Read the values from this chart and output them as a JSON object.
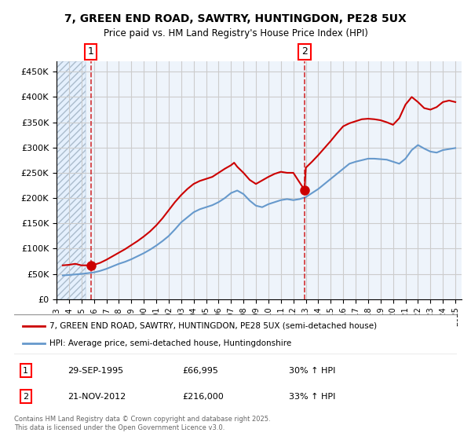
{
  "title_line1": "7, GREEN END ROAD, SAWTRY, HUNTINGDON, PE28 5UX",
  "title_line2": "Price paid vs. HM Land Registry's House Price Index (HPI)",
  "legend_line1": "7, GREEN END ROAD, SAWTRY, HUNTINGDON, PE28 5UX (semi-detached house)",
  "legend_line2": "HPI: Average price, semi-detached house, Huntingdonshire",
  "footer": "Contains HM Land Registry data © Crown copyright and database right 2025.\nThis data is licensed under the Open Government Licence v3.0.",
  "purchase1_date": "29-SEP-1995",
  "purchase1_price": 66995,
  "purchase1_hpi": "30% ↑ HPI",
  "purchase2_date": "21-NOV-2012",
  "purchase2_price": 216000,
  "purchase2_hpi": "33% ↑ HPI",
  "purchase1_x": 1995.75,
  "purchase2_x": 2012.9,
  "red_line_color": "#cc0000",
  "blue_line_color": "#6699cc",
  "hpi_dot_color": "#cc0000",
  "bg_hatched_color": "#ddeeff",
  "grid_color": "#cccccc",
  "ylim_min": 0,
  "ylim_max": 470000,
  "xlim_min": 1993,
  "xlim_max": 2025.5,
  "ytick_values": [
    0,
    50000,
    100000,
    150000,
    200000,
    250000,
    300000,
    350000,
    400000,
    450000
  ],
  "ytick_labels": [
    "£0",
    "£50K",
    "£100K",
    "£150K",
    "£200K",
    "£250K",
    "£300K",
    "£350K",
    "£400K",
    "£450K"
  ],
  "xtick_years": [
    1993,
    1994,
    1995,
    1996,
    1997,
    1998,
    1999,
    2000,
    2001,
    2002,
    2003,
    2004,
    2005,
    2006,
    2007,
    2008,
    2009,
    2010,
    2011,
    2012,
    2013,
    2014,
    2015,
    2016,
    2017,
    2018,
    2019,
    2020,
    2021,
    2022,
    2023,
    2024,
    2025
  ],
  "hpi_data_x": [
    1993.5,
    1994.0,
    1994.5,
    1995.0,
    1995.5,
    1996.0,
    1996.5,
    1997.0,
    1997.5,
    1998.0,
    1998.5,
    1999.0,
    1999.5,
    2000.0,
    2000.5,
    2001.0,
    2001.5,
    2002.0,
    2002.5,
    2003.0,
    2003.5,
    2004.0,
    2004.5,
    2005.0,
    2005.5,
    2006.0,
    2006.5,
    2007.0,
    2007.5,
    2008.0,
    2008.5,
    2009.0,
    2009.5,
    2010.0,
    2010.5,
    2011.0,
    2011.5,
    2012.0,
    2012.5,
    2013.0,
    2013.5,
    2014.0,
    2014.5,
    2015.0,
    2015.5,
    2016.0,
    2016.5,
    2017.0,
    2017.5,
    2018.0,
    2018.5,
    2019.0,
    2019.5,
    2020.0,
    2020.5,
    2021.0,
    2021.5,
    2022.0,
    2022.5,
    2023.0,
    2023.5,
    2024.0,
    2024.5,
    2025.0
  ],
  "hpi_data_y": [
    47000,
    48000,
    49000,
    50000,
    51500,
    53000,
    56000,
    60000,
    65000,
    70000,
    74000,
    79000,
    85000,
    91000,
    98000,
    106000,
    115000,
    125000,
    138000,
    152000,
    162000,
    172000,
    178000,
    182000,
    186000,
    192000,
    200000,
    210000,
    215000,
    208000,
    195000,
    185000,
    182000,
    188000,
    192000,
    196000,
    198000,
    196000,
    198000,
    202000,
    210000,
    218000,
    228000,
    238000,
    248000,
    258000,
    268000,
    272000,
    275000,
    278000,
    278000,
    277000,
    276000,
    272000,
    268000,
    278000,
    295000,
    305000,
    298000,
    292000,
    290000,
    295000,
    297000,
    299000
  ],
  "price_data_x": [
    1993.5,
    1994.0,
    1994.5,
    1995.0,
    1995.75,
    1996.0,
    1996.5,
    1997.0,
    1997.5,
    1998.0,
    1998.5,
    1999.0,
    1999.5,
    2000.0,
    2000.5,
    2001.0,
    2001.5,
    2002.0,
    2002.5,
    2003.0,
    2003.5,
    2004.0,
    2004.5,
    2005.0,
    2005.5,
    2006.0,
    2006.5,
    2007.0,
    2007.25,
    2007.5,
    2008.0,
    2008.5,
    2009.0,
    2009.5,
    2010.0,
    2010.5,
    2011.0,
    2011.5,
    2012.0,
    2012.9,
    2013.0,
    2013.5,
    2014.0,
    2014.5,
    2015.0,
    2015.5,
    2016.0,
    2016.5,
    2017.0,
    2017.5,
    2018.0,
    2018.5,
    2019.0,
    2019.5,
    2020.0,
    2020.5,
    2021.0,
    2021.5,
    2022.0,
    2022.5,
    2023.0,
    2023.5,
    2024.0,
    2024.5,
    2025.0
  ],
  "price_data_y": [
    66995,
    68000,
    70000,
    66995,
    66995,
    68000,
    72000,
    78000,
    85000,
    92000,
    99000,
    107000,
    115000,
    124000,
    134000,
    146000,
    160000,
    176000,
    192000,
    206000,
    218000,
    228000,
    234000,
    238000,
    242000,
    250000,
    258000,
    265000,
    270000,
    262000,
    250000,
    236000,
    228000,
    235000,
    242000,
    248000,
    252000,
    250000,
    250000,
    216000,
    260000,
    272000,
    285000,
    299000,
    313000,
    328000,
    342000,
    348000,
    352000,
    356000,
    357000,
    356000,
    354000,
    350000,
    345000,
    358000,
    385000,
    400000,
    390000,
    378000,
    375000,
    380000,
    390000,
    393000,
    390000
  ]
}
